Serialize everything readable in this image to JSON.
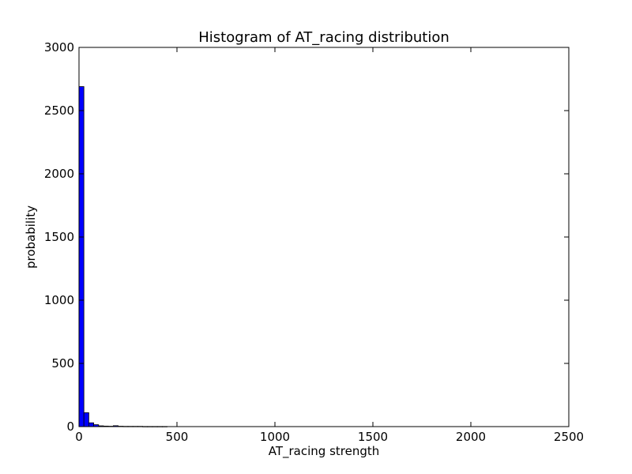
{
  "chart_data": {
    "type": "bar",
    "title": "Histogram of AT_racing  distribution",
    "xlabel": "AT_racing  strength",
    "ylabel": "probability",
    "xlim": [
      0,
      2500
    ],
    "ylim": [
      0,
      3000
    ],
    "xticks": [
      0,
      500,
      1000,
      1500,
      2000,
      2500
    ],
    "yticks": [
      0,
      500,
      1000,
      1500,
      2000,
      2500,
      3000
    ],
    "bin_width": 25,
    "bins": [
      {
        "x0": 0,
        "value": 2690
      },
      {
        "x0": 25,
        "value": 110
      },
      {
        "x0": 50,
        "value": 30
      },
      {
        "x0": 75,
        "value": 15
      },
      {
        "x0": 100,
        "value": 6
      },
      {
        "x0": 125,
        "value": 4
      },
      {
        "x0": 150,
        "value": 3
      },
      {
        "x0": 175,
        "value": 7
      },
      {
        "x0": 200,
        "value": 3
      },
      {
        "x0": 225,
        "value": 2
      },
      {
        "x0": 250,
        "value": 2
      },
      {
        "x0": 275,
        "value": 2
      },
      {
        "x0": 300,
        "value": 2
      },
      {
        "x0": 325,
        "value": 1
      },
      {
        "x0": 350,
        "value": 1
      },
      {
        "x0": 375,
        "value": 1
      },
      {
        "x0": 400,
        "value": 1
      },
      {
        "x0": 425,
        "value": 1
      }
    ],
    "bar_color": "#0000ff",
    "grid": false
  }
}
